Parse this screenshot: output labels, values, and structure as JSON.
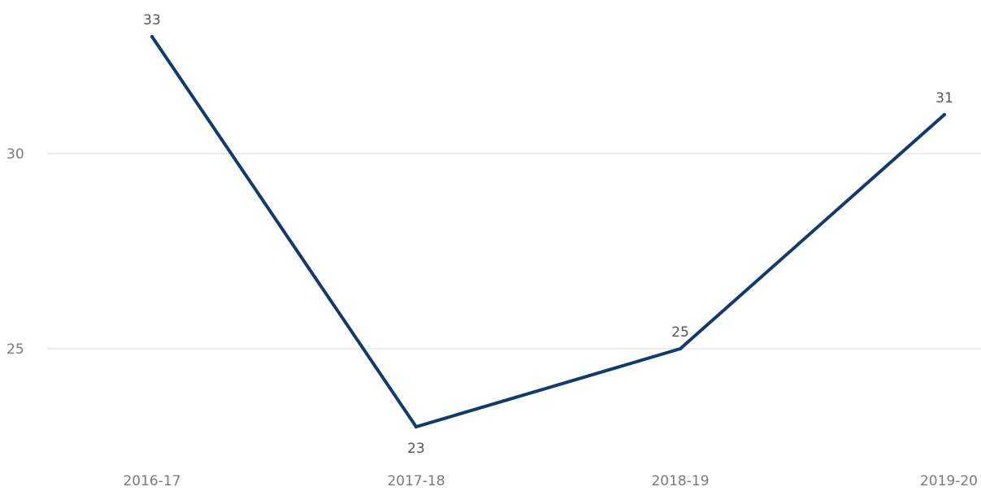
{
  "chart_data": {
    "type": "line",
    "title": "",
    "xlabel": "",
    "ylabel": "",
    "categories": [
      "2016-17",
      "2017-18",
      "2018-19",
      "2019-20"
    ],
    "series": [
      {
        "values": [
          33,
          23,
          25,
          31
        ]
      }
    ],
    "data_labels": [
      "33",
      "23",
      "25",
      "31"
    ],
    "y_ticks": [
      25,
      30
    ],
    "y_tick_labels": [
      "25",
      "30"
    ],
    "ylim": [
      21.0,
      34.0
    ],
    "grid": "horizontal",
    "legend": "none"
  },
  "colors": {
    "series": "#123a6b",
    "gridline": "#e6e6e6",
    "tick_text": "#7a7a7a",
    "data_label_text": "#555555"
  }
}
